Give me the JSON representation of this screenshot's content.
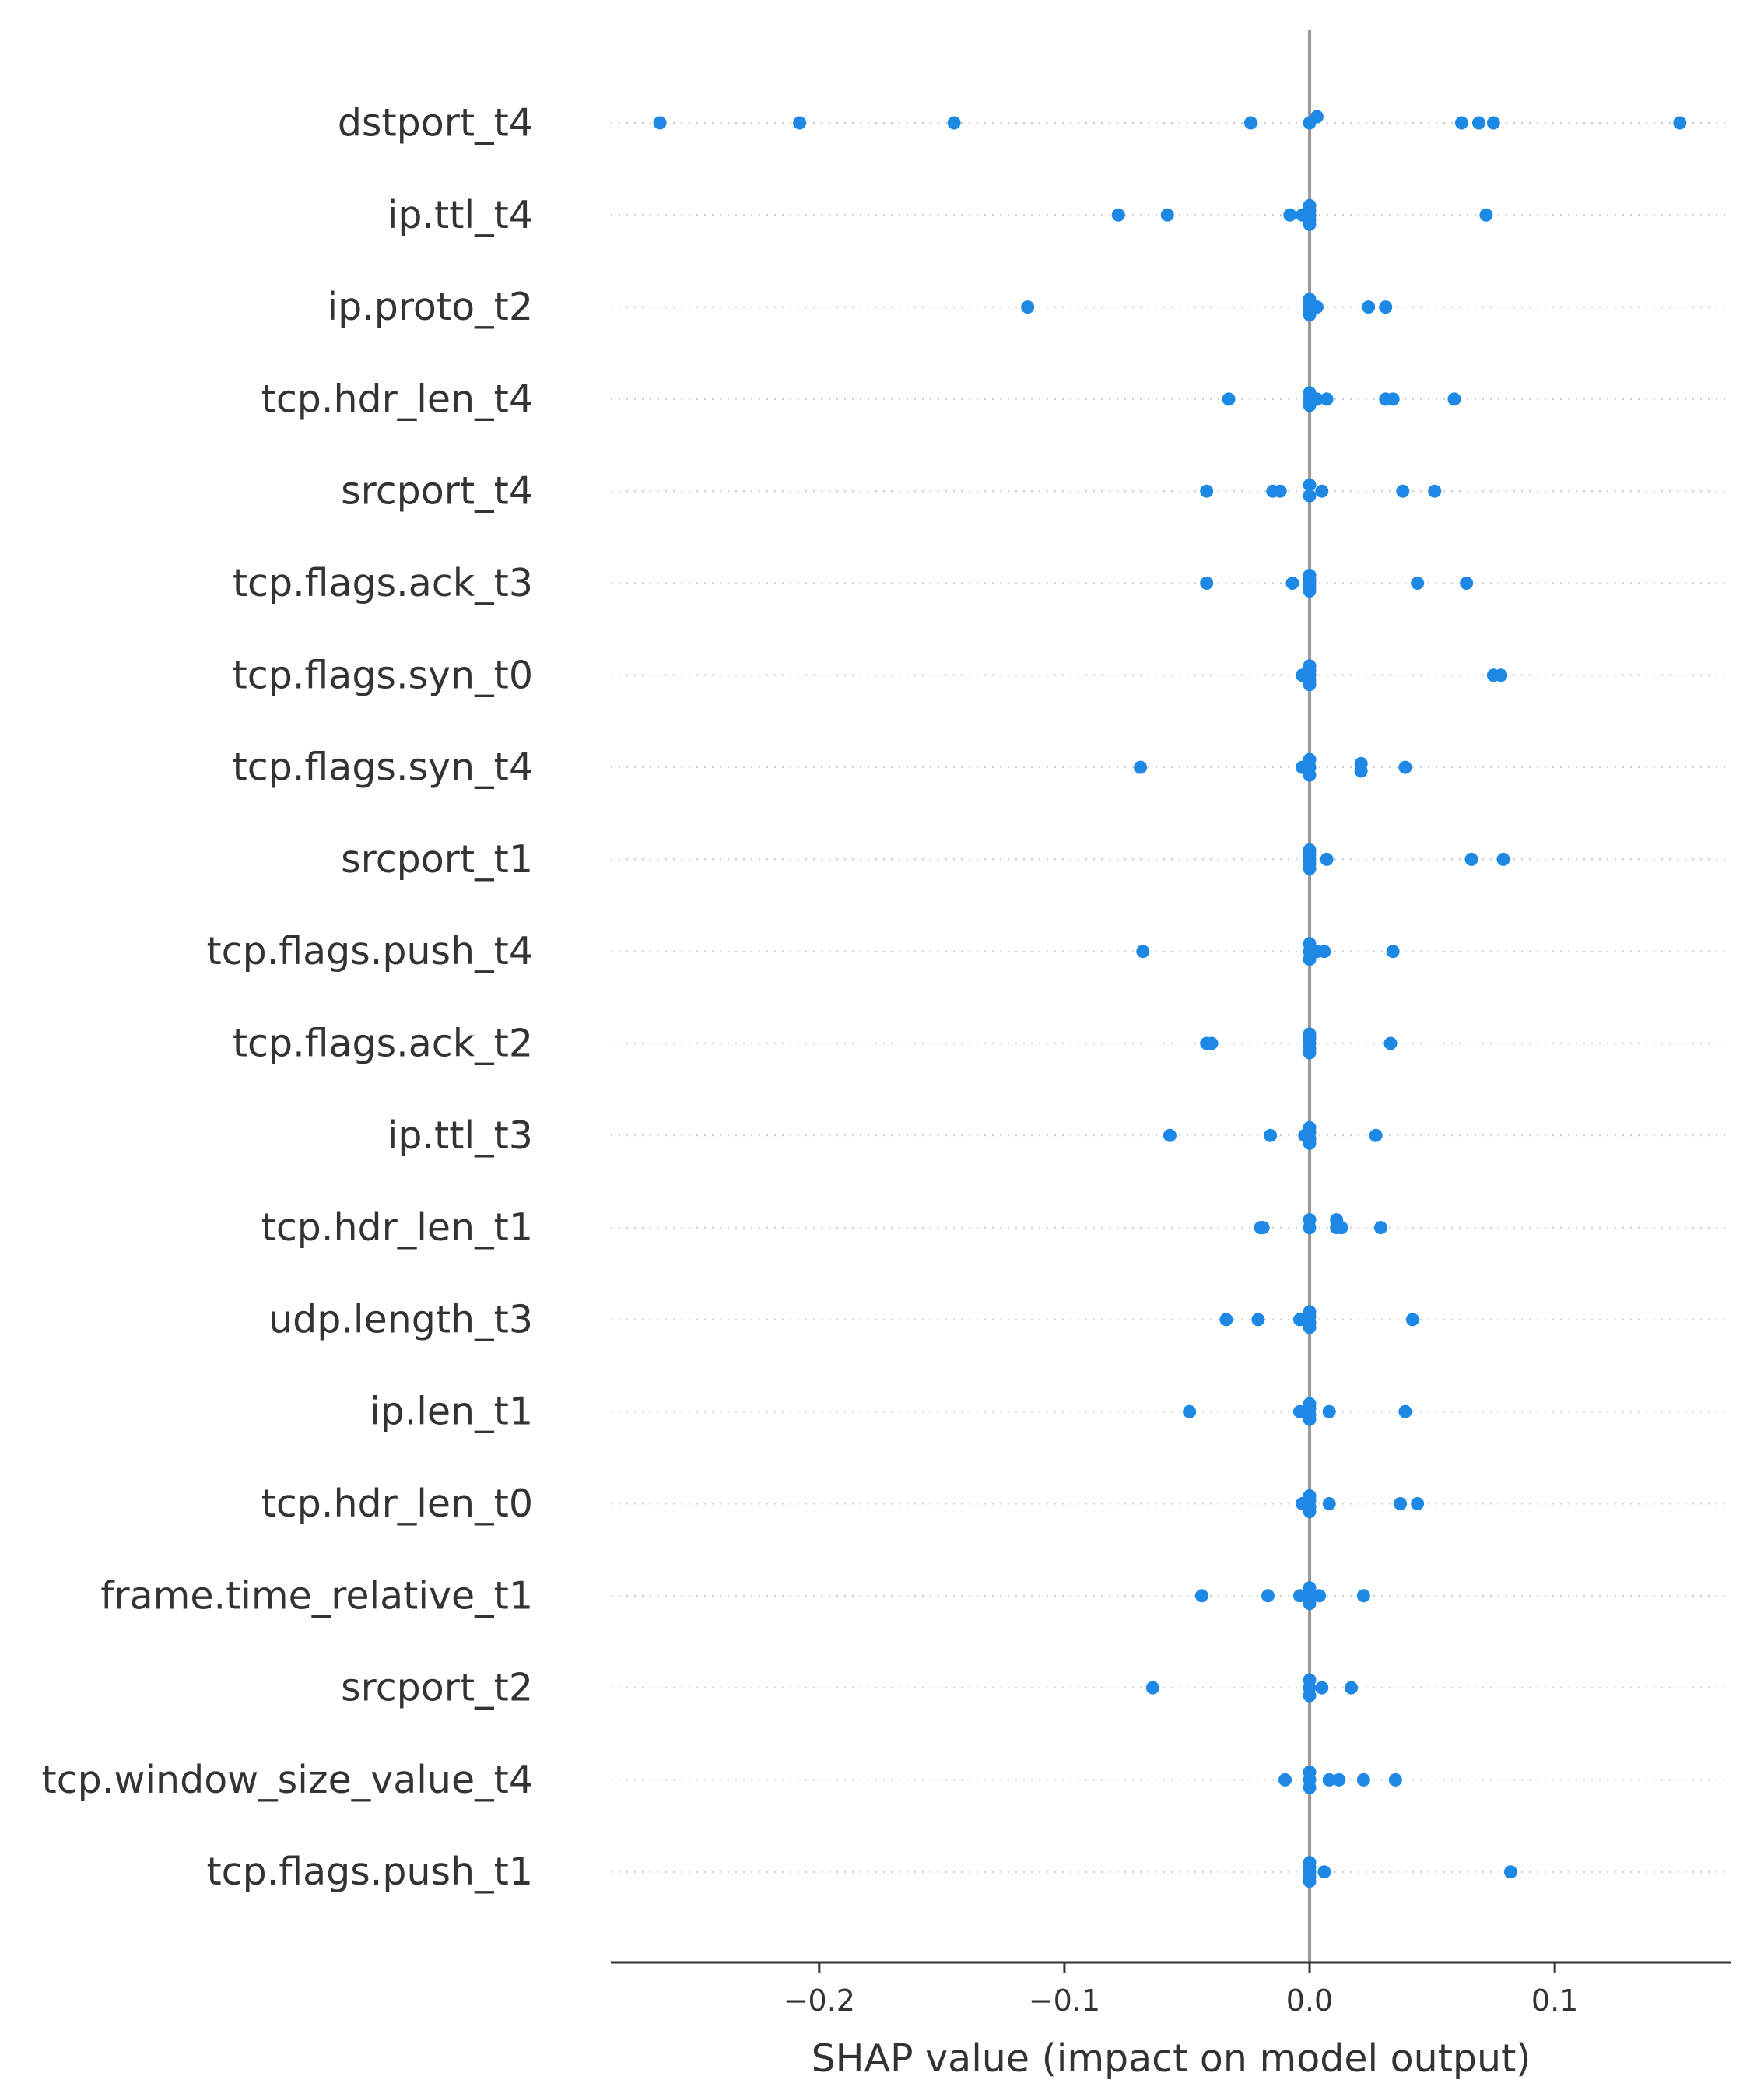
{
  "chart_data": {
    "type": "scatter",
    "xlabel": "SHAP value (impact on model output)",
    "xlim": [
      -0.285,
      0.172
    ],
    "xticks": [
      -0.2,
      -0.1,
      0.0,
      0.1
    ],
    "xtick_labels": [
      "−0.2",
      "−0.1",
      "0.0",
      "0.1"
    ],
    "point_color": "#1E88E5",
    "zero_line_color": "#999999",
    "rows": [
      {
        "feature": "dstport_t4",
        "points": [
          [
            -0.265,
            0
          ],
          [
            -0.208,
            0
          ],
          [
            -0.145,
            0
          ],
          [
            -0.024,
            0
          ],
          [
            0.0,
            0
          ],
          [
            0.003,
            -0.2
          ],
          [
            0.062,
            0
          ],
          [
            0.069,
            0
          ],
          [
            0.075,
            0
          ],
          [
            0.151,
            0
          ]
        ]
      },
      {
        "feature": "ip.ttl_t4",
        "points": [
          [
            -0.078,
            0
          ],
          [
            -0.058,
            0
          ],
          [
            -0.008,
            0
          ],
          [
            -0.003,
            0
          ],
          [
            0.0,
            -0.3
          ],
          [
            0.0,
            -0.15
          ],
          [
            0.0,
            0
          ],
          [
            0.0,
            0.15
          ],
          [
            0.0,
            0.3
          ],
          [
            0.072,
            0
          ]
        ]
      },
      {
        "feature": "ip.proto_t2",
        "points": [
          [
            -0.115,
            0
          ],
          [
            0.0,
            -0.25
          ],
          [
            0.0,
            -0.12
          ],
          [
            0.0,
            0
          ],
          [
            0.0,
            0.12
          ],
          [
            0.0,
            0.25
          ],
          [
            0.003,
            0
          ],
          [
            0.024,
            0
          ],
          [
            0.031,
            0
          ]
        ]
      },
      {
        "feature": "tcp.hdr_len_t4",
        "points": [
          [
            -0.033,
            0
          ],
          [
            0.0,
            -0.2
          ],
          [
            0.0,
            0
          ],
          [
            0.0,
            0.2
          ],
          [
            0.003,
            0
          ],
          [
            0.007,
            0
          ],
          [
            0.031,
            0
          ],
          [
            0.034,
            0
          ],
          [
            0.059,
            0
          ]
        ]
      },
      {
        "feature": "srcport_t4",
        "points": [
          [
            -0.042,
            0
          ],
          [
            -0.015,
            0
          ],
          [
            -0.012,
            0
          ],
          [
            0.0,
            -0.2
          ],
          [
            0.0,
            0.15
          ],
          [
            0.005,
            0
          ],
          [
            0.038,
            0
          ],
          [
            0.051,
            0
          ]
        ]
      },
      {
        "feature": "tcp.flags.ack_t3",
        "points": [
          [
            -0.042,
            0
          ],
          [
            -0.007,
            0
          ],
          [
            0.0,
            -0.25
          ],
          [
            0.0,
            -0.12
          ],
          [
            0.0,
            0
          ],
          [
            0.0,
            0.12
          ],
          [
            0.0,
            0.25
          ],
          [
            0.044,
            0
          ],
          [
            0.064,
            0
          ]
        ]
      },
      {
        "feature": "tcp.flags.syn_t0",
        "points": [
          [
            -0.003,
            0
          ],
          [
            0.0,
            -0.3
          ],
          [
            0.0,
            -0.15
          ],
          [
            0.0,
            0
          ],
          [
            0.0,
            0.15
          ],
          [
            0.0,
            0.3
          ],
          [
            0.075,
            0
          ],
          [
            0.078,
            0
          ]
        ]
      },
      {
        "feature": "tcp.flags.syn_t4",
        "points": [
          [
            -0.069,
            0
          ],
          [
            -0.003,
            0
          ],
          [
            0.0,
            -0.25
          ],
          [
            0.0,
            0
          ],
          [
            0.0,
            0.25
          ],
          [
            0.021,
            -0.12
          ],
          [
            0.021,
            0.12
          ],
          [
            0.039,
            0
          ]
        ]
      },
      {
        "feature": "srcport_t1",
        "points": [
          [
            0.0,
            -0.3
          ],
          [
            0.0,
            -0.15
          ],
          [
            0.0,
            0
          ],
          [
            0.0,
            0.15
          ],
          [
            0.0,
            0.3
          ],
          [
            0.007,
            0
          ],
          [
            0.066,
            0
          ],
          [
            0.079,
            0
          ]
        ]
      },
      {
        "feature": "tcp.flags.push_t4",
        "points": [
          [
            -0.068,
            0
          ],
          [
            0.0,
            -0.25
          ],
          [
            0.0,
            0
          ],
          [
            0.0,
            0.25
          ],
          [
            0.003,
            0
          ],
          [
            0.006,
            0
          ],
          [
            0.034,
            0
          ]
        ]
      },
      {
        "feature": "tcp.flags.ack_t2",
        "points": [
          [
            -0.042,
            0
          ],
          [
            -0.04,
            0
          ],
          [
            0.0,
            -0.3
          ],
          [
            0.0,
            -0.15
          ],
          [
            0.0,
            0
          ],
          [
            0.0,
            0.15
          ],
          [
            0.0,
            0.3
          ],
          [
            0.033,
            0
          ]
        ]
      },
      {
        "feature": "ip.ttl_t3",
        "points": [
          [
            -0.057,
            0
          ],
          [
            -0.016,
            0
          ],
          [
            -0.002,
            0
          ],
          [
            0.0,
            -0.25
          ],
          [
            0.0,
            -0.1
          ],
          [
            0.0,
            0.1
          ],
          [
            0.0,
            0.25
          ],
          [
            0.027,
            0
          ]
        ]
      },
      {
        "feature": "tcp.hdr_len_t1",
        "points": [
          [
            -0.02,
            0
          ],
          [
            -0.019,
            0
          ],
          [
            0.0,
            -0.25
          ],
          [
            0.0,
            0
          ],
          [
            0.011,
            -0.25
          ],
          [
            0.011,
            0
          ],
          [
            0.013,
            0
          ],
          [
            0.029,
            0
          ]
        ]
      },
      {
        "feature": "udp.length_t3",
        "points": [
          [
            -0.034,
            0
          ],
          [
            -0.021,
            0
          ],
          [
            -0.004,
            0
          ],
          [
            0.0,
            -0.25
          ],
          [
            0.0,
            -0.1
          ],
          [
            0.0,
            0.1
          ],
          [
            0.0,
            0.25
          ],
          [
            0.042,
            0
          ]
        ]
      },
      {
        "feature": "ip.len_t1",
        "points": [
          [
            -0.049,
            0
          ],
          [
            -0.004,
            0
          ],
          [
            0.0,
            -0.25
          ],
          [
            0.0,
            -0.1
          ],
          [
            0.0,
            0.1
          ],
          [
            0.0,
            0.25
          ],
          [
            0.008,
            0
          ],
          [
            0.039,
            0
          ]
        ]
      },
      {
        "feature": "tcp.hdr_len_t0",
        "points": [
          [
            -0.003,
            0
          ],
          [
            0.0,
            -0.25
          ],
          [
            0.0,
            -0.1
          ],
          [
            0.0,
            0.1
          ],
          [
            0.0,
            0.25
          ],
          [
            0.008,
            0
          ],
          [
            0.037,
            0
          ],
          [
            0.044,
            0
          ]
        ]
      },
      {
        "feature": "frame.time_relative_t1",
        "points": [
          [
            -0.044,
            0
          ],
          [
            -0.017,
            0
          ],
          [
            -0.004,
            0
          ],
          [
            0.0,
            -0.25
          ],
          [
            0.0,
            0
          ],
          [
            0.0,
            0.25
          ],
          [
            0.004,
            0
          ],
          [
            0.022,
            0
          ]
        ]
      },
      {
        "feature": "srcport_t2",
        "points": [
          [
            -0.064,
            0
          ],
          [
            0.0,
            -0.25
          ],
          [
            0.0,
            0
          ],
          [
            0.0,
            0.25
          ],
          [
            0.005,
            0
          ],
          [
            0.017,
            0
          ]
        ]
      },
      {
        "feature": "tcp.window_size_value_t4",
        "points": [
          [
            -0.01,
            0
          ],
          [
            0.0,
            -0.25
          ],
          [
            0.0,
            0
          ],
          [
            0.0,
            0.25
          ],
          [
            0.008,
            0
          ],
          [
            0.012,
            0
          ],
          [
            0.022,
            0
          ],
          [
            0.035,
            0
          ]
        ]
      },
      {
        "feature": "tcp.flags.push_t1",
        "points": [
          [
            0.0,
            -0.3
          ],
          [
            0.0,
            -0.15
          ],
          [
            0.0,
            0
          ],
          [
            0.0,
            0.15
          ],
          [
            0.0,
            0.3
          ],
          [
            0.006,
            0
          ],
          [
            0.082,
            0
          ]
        ]
      }
    ]
  }
}
